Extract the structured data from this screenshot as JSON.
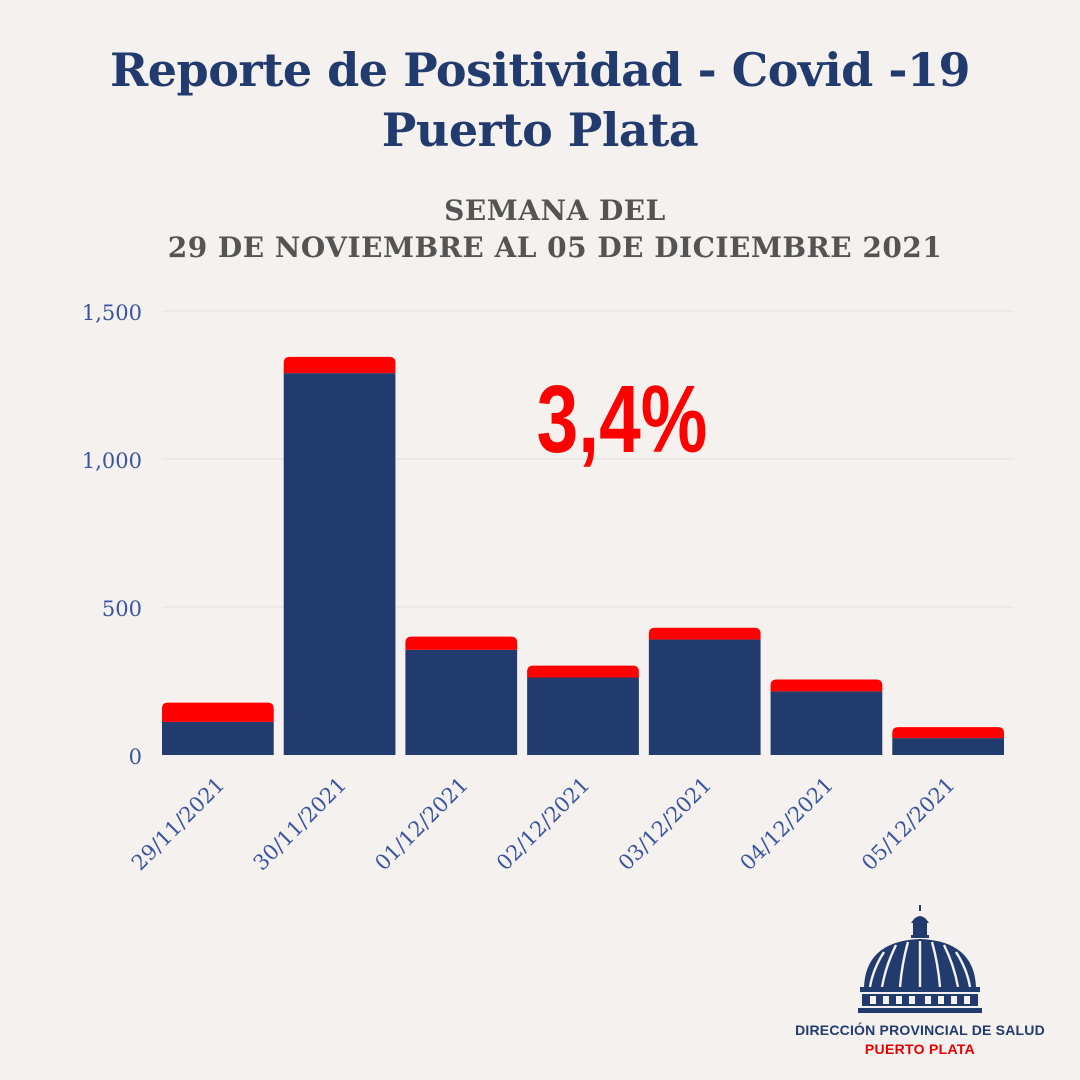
{
  "title": {
    "line1": "Reporte de Positividad - Covid -19",
    "line2": "Puerto Plata"
  },
  "subtitle": {
    "line1": "SEMANA DEL",
    "line2": "29 DE NOVIEMBRE AL 05 DE DICIEMBRE 2021"
  },
  "chart_data": {
    "type": "bar",
    "stacked": true,
    "categories": [
      "29/11/2021",
      "30/11/2021",
      "01/12/2021",
      "02/12/2021",
      "03/12/2021",
      "04/12/2021",
      "05/12/2021"
    ],
    "series": [
      {
        "values": [
          112,
          1290,
          355,
          262,
          390,
          215,
          57
        ],
        "color": "#213b6f"
      },
      {
        "values": [
          65,
          55,
          45,
          40,
          40,
          40,
          37
        ],
        "color": "#ff0000"
      }
    ],
    "ylim": [
      0,
      1500
    ],
    "yticks": [
      0,
      500,
      1000,
      1500
    ],
    "ytick_labels": [
      "0",
      "500",
      "1,000",
      "1,500"
    ],
    "grid": true,
    "annotation": "3,4%"
  },
  "colors": {
    "navy": "#213b6f",
    "red": "#ff0000",
    "axis_text": "#3a55a0",
    "grid": "#dde3e0"
  },
  "logo": {
    "line1": "DIRECCIÓN PROVINCIAL DE SALUD",
    "line2": "PUERTO PLATA",
    "icon": "dome-icon"
  }
}
